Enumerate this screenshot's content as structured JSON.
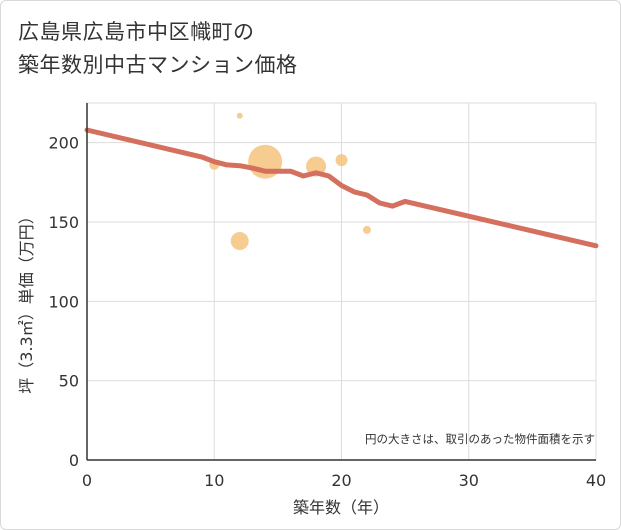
{
  "title_line1": "広島県広島市中区幟町の",
  "title_line2": "築年数別中古マンション価格",
  "chart_data": {
    "type": "scatter",
    "xlabel": "築年数（年）",
    "ylabel": "坪（3.3㎡）単価（万円）",
    "xlim": [
      0,
      40
    ],
    "ylim": [
      0,
      225
    ],
    "x_ticks": [
      "0",
      "10",
      "20",
      "30",
      "40"
    ],
    "y_ticks": [
      "0",
      "50",
      "100",
      "150",
      "200"
    ],
    "x_tick_values": [
      0,
      10,
      20,
      30,
      40
    ],
    "y_tick_values": [
      0,
      50,
      100,
      150,
      200
    ],
    "grid": true,
    "note": "円の大きさは、取引のあった物件面積を示す",
    "bubble_color": "#f4c37d",
    "line_color": "#d4705d",
    "bubbles": [
      {
        "x": 10,
        "y": 186,
        "size": 5
      },
      {
        "x": 12,
        "y": 217,
        "size": 3
      },
      {
        "x": 12,
        "y": 138,
        "size": 9
      },
      {
        "x": 14,
        "y": 188,
        "size": 17
      },
      {
        "x": 18,
        "y": 185,
        "size": 10
      },
      {
        "x": 20,
        "y": 189,
        "size": 6
      },
      {
        "x": 22,
        "y": 145,
        "size": 4
      }
    ],
    "trend_line": {
      "x": [
        0,
        9,
        10,
        11,
        12,
        13,
        14,
        15,
        16,
        17,
        18,
        19,
        20,
        21,
        22,
        23,
        24,
        25,
        40
      ],
      "y": [
        208,
        191,
        188,
        186,
        185.5,
        184,
        182,
        182,
        182,
        179,
        181,
        179,
        173,
        169,
        167,
        162,
        160,
        163,
        135
      ]
    }
  }
}
